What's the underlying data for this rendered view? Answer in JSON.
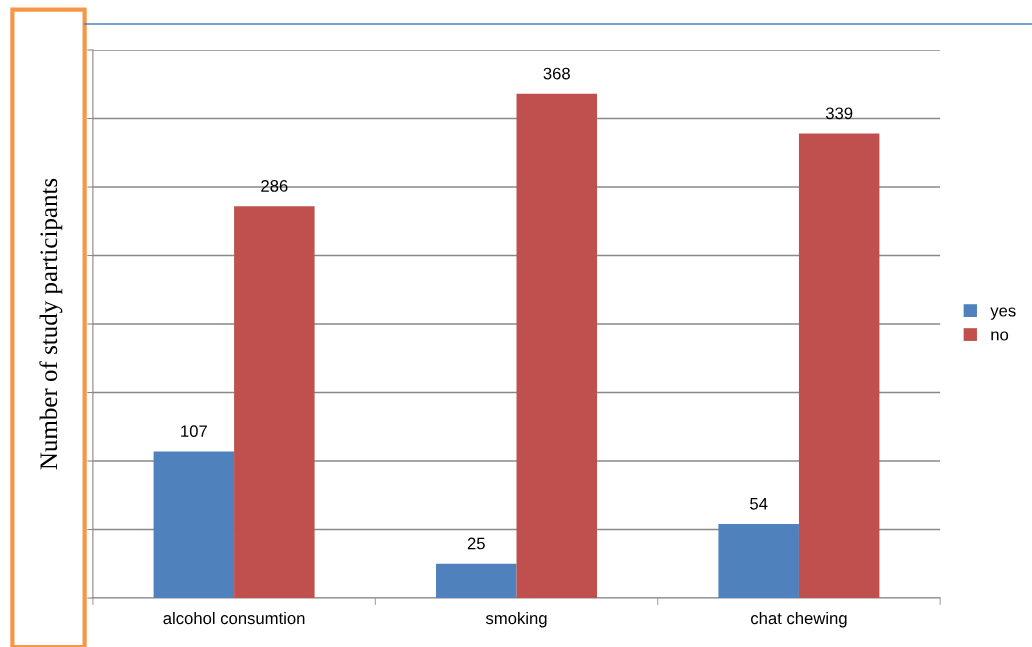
{
  "chart_data": {
    "type": "bar",
    "ylabel": "Number of study participants",
    "categories": [
      "alcohol consumtion",
      "smoking",
      "chat chewing"
    ],
    "series": [
      {
        "name": "yes",
        "color": "#4f81bd",
        "values": [
          107,
          25,
          54
        ]
      },
      {
        "name": "no",
        "color": "#c0504d",
        "values": [
          286,
          368,
          339
        ]
      }
    ],
    "ylim": [
      0,
      400
    ],
    "yticks": [
      {
        "value": 0,
        "label": null
      },
      {
        "value": 50,
        "label": null
      },
      {
        "value": 100,
        "label": null
      },
      {
        "value": 150,
        "label": null
      },
      {
        "value": 200,
        "label": null
      },
      {
        "value": 250,
        "label": null
      },
      {
        "value": 300,
        "label": null
      },
      {
        "value": 350,
        "label": null
      },
      {
        "value": 400,
        "label": null
      }
    ],
    "tick_labels": "x",
    "grid": "y",
    "legend": "right",
    "data_labels": true
  }
}
